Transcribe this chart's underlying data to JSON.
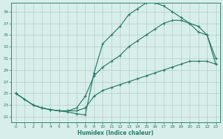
{
  "xlabel": "Humidex (Indice chaleur)",
  "bg_color": "#d8eeea",
  "grid_color": "#b0ccC4",
  "line_color": "#2a7a6a",
  "xlim": [
    -0.5,
    23.5
  ],
  "ylim": [
    20,
    40.5
  ],
  "xticks": [
    0,
    1,
    2,
    3,
    4,
    5,
    6,
    7,
    8,
    9,
    10,
    11,
    12,
    13,
    14,
    15,
    16,
    17,
    18,
    19,
    20,
    21,
    22,
    23
  ],
  "yticks": [
    21,
    23,
    25,
    27,
    29,
    31,
    33,
    35,
    37,
    39
  ],
  "line1_x": [
    0,
    1,
    2,
    3,
    4,
    5,
    6,
    7,
    8,
    9,
    10,
    11,
    12,
    13,
    14,
    15,
    16,
    17,
    18,
    19,
    20,
    21,
    22,
    23
  ],
  "line1_y": [
    25.0,
    24.0,
    23.0,
    22.5,
    22.2,
    22.0,
    21.8,
    21.5,
    21.3,
    28.5,
    33.5,
    35.0,
    36.5,
    38.5,
    39.5,
    40.5,
    40.5,
    40.0,
    39.0,
    38.0,
    37.0,
    36.5,
    35.0,
    31.0
  ],
  "line2_x": [
    0,
    2,
    3,
    4,
    5,
    6,
    7,
    8,
    9,
    10,
    11,
    12,
    13,
    14,
    15,
    16,
    17,
    18,
    19,
    20,
    21,
    22,
    23
  ],
  "line2_y": [
    25.0,
    23.0,
    22.5,
    22.2,
    22.0,
    22.0,
    22.5,
    24.5,
    28.0,
    29.5,
    30.5,
    31.5,
    33.0,
    34.0,
    35.0,
    36.0,
    37.0,
    37.5,
    37.5,
    37.0,
    35.5,
    35.0,
    30.0
  ],
  "line3_x": [
    0,
    2,
    3,
    4,
    5,
    6,
    7,
    8,
    9,
    10,
    11,
    12,
    13,
    14,
    15,
    16,
    17,
    18,
    19,
    20,
    21,
    22,
    23
  ],
  "line3_y": [
    25.0,
    23.0,
    22.5,
    22.2,
    22.0,
    22.0,
    22.0,
    22.5,
    24.5,
    25.5,
    26.0,
    26.5,
    27.0,
    27.5,
    28.0,
    28.5,
    29.0,
    29.5,
    30.0,
    30.5,
    30.5,
    30.5,
    30.0
  ]
}
